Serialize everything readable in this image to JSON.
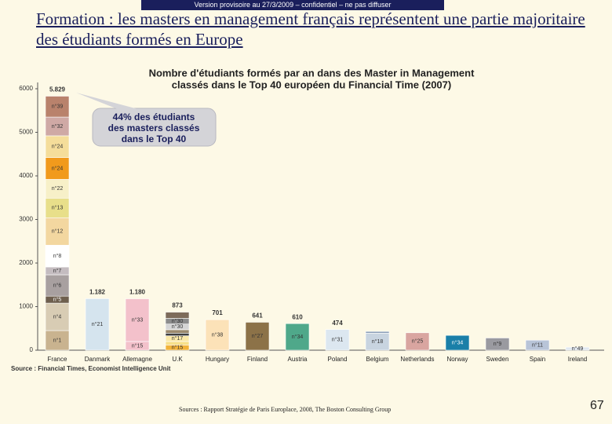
{
  "banner": "Version provisoire au 27/3/2009 – confidentiel – ne pas diffuser",
  "title": "Formation : les masters en management français représentent une partie majoritaire des étudiants formés en Europe",
  "chart_data": {
    "type": "stacked_bar",
    "title_lines": [
      "Nombre d'étudiants formés par an dans des Master in Management",
      "classés dans le Top 40 européen du Financial Time (2007)"
    ],
    "annotation_lines": [
      "44% des étudiants",
      "des masters classés",
      "dans le Top 40"
    ],
    "source": "Source : Financial Times, Economist Intelligence Unit",
    "ylim": [
      0,
      6000
    ],
    "yticks": [
      0,
      1000,
      2000,
      3000,
      4000,
      5000,
      6000
    ],
    "categories": [
      "France",
      "Danmark",
      "Allemagne",
      "U.K",
      "Hungary",
      "Finland",
      "Austria",
      "Poland",
      "Belgium",
      "Netherlands",
      "Norway",
      "Sweden",
      "Spain",
      "Ireland"
    ],
    "totals": [
      5829,
      1182,
      1180,
      873,
      701,
      641,
      610,
      474,
      null,
      null,
      null,
      null,
      null,
      null
    ],
    "total_labels": [
      "5.829",
      "1.182",
      "1.180",
      null,
      null,
      null,
      null,
      null,
      null,
      null,
      null,
      null,
      null,
      null
    ],
    "bars": [
      {
        "segments": [
          {
            "label": "n°1",
            "value": 450,
            "color": "#c9b38f"
          },
          {
            "label": "n°4",
            "value": 630,
            "color": "#d8ccb4"
          },
          {
            "label": "n°5",
            "value": 160,
            "color": "#6e5f4e"
          },
          {
            "label": "n°6",
            "value": 490,
            "color": "#a8a0a0"
          },
          {
            "label": "n°7",
            "value": 180,
            "color": "#c4bcc0"
          },
          {
            "label": "n°8",
            "value": 500,
            "color": "#ffffff"
          },
          {
            "label": "n°12",
            "value": 630,
            "color": "#f3d7a0"
          },
          {
            "label": "n°13",
            "value": 450,
            "color": "#e8df8a"
          },
          {
            "label": "n°22",
            "value": 430,
            "color": "#f7f0c8"
          },
          {
            "label": "n°24",
            "value": 500,
            "color": "#f19a1c"
          },
          {
            "label": "n°24",
            "value": 500,
            "color": "#f5dd9a"
          },
          {
            "label": "n°32",
            "value": 430,
            "color": "#cfa9a5"
          },
          {
            "label": "n°39",
            "value": 479,
            "color": "#b9826c"
          }
        ]
      },
      {
        "segments": [
          {
            "label": "n°21",
            "value": 1182,
            "color": "#d5e4ee"
          }
        ]
      },
      {
        "segments": [
          {
            "label": "n°15",
            "value": 200,
            "color": "#f3c1cb"
          },
          {
            "label": "n°33",
            "value": 980,
            "color": "#f3c1cb"
          }
        ]
      },
      {
        "segments": [
          {
            "label": "n°15",
            "value": 120,
            "color": "#f2b33a"
          },
          {
            "label": null,
            "value": 80,
            "color": "#f7e08a"
          },
          {
            "label": "n°17",
            "value": 130,
            "color": "#fbe9a8"
          },
          {
            "label": null,
            "value": 60,
            "color": "#3e3e3e"
          },
          {
            "label": null,
            "value": 80,
            "color": "#9c8a6e"
          },
          {
            "label": "n°30",
            "value": 130,
            "color": "#d5d5d5"
          },
          {
            "label": "n°30",
            "value": 130,
            "color": "#8c8c8c"
          },
          {
            "label": null,
            "value": 143,
            "color": "#7d6b5a"
          }
        ]
      },
      {
        "segments": [
          {
            "label": "n°38",
            "value": 701,
            "color": "#fce2b8"
          }
        ]
      },
      {
        "segments": [
          {
            "label": "n°27",
            "value": 641,
            "color": "#8c7248"
          }
        ]
      },
      {
        "segments": [
          {
            "label": "n°34",
            "value": 610,
            "color": "#4fa88a"
          }
        ]
      },
      {
        "segments": [
          {
            "label": "n°31",
            "value": 474,
            "color": "#dce7f0"
          }
        ]
      },
      {
        "segments": [
          {
            "label": "n°18",
            "value": 390,
            "color": "#c8d4e0"
          },
          {
            "label": null,
            "value": 40,
            "color": "#8ca0b8"
          }
        ]
      },
      {
        "segments": [
          {
            "label": "n°25",
            "value": 400,
            "color": "#d9a5a0"
          }
        ]
      },
      {
        "segments": [
          {
            "label": "n°34",
            "value": 340,
            "color": "#1a7fa8"
          }
        ]
      },
      {
        "segments": [
          {
            "label": "n°9",
            "value": 280,
            "color": "#9a9aa0"
          }
        ]
      },
      {
        "segments": [
          {
            "label": "n°11",
            "value": 230,
            "color": "#b8c4d8"
          }
        ]
      },
      {
        "segments": [
          {
            "label": "n°49",
            "value": 70,
            "color": "#e0e8f0"
          }
        ]
      }
    ]
  },
  "footer": {
    "sources": "Sources : Rapport Stratégie de Paris Europlace, 2008, The Boston Consulting Group",
    "page": "67"
  }
}
